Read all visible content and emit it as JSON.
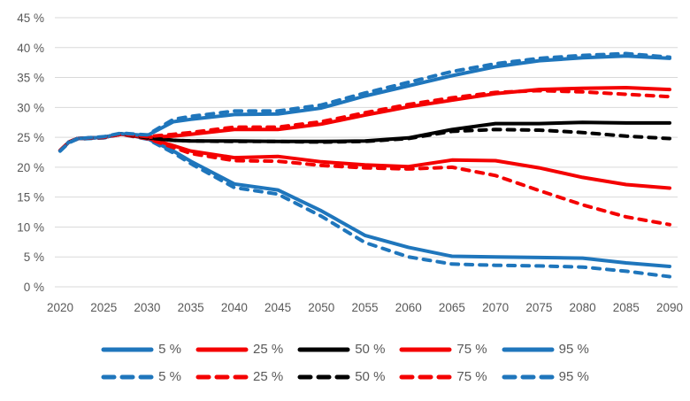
{
  "chart_data": {
    "type": "line",
    "title": "",
    "xlabel": "",
    "ylabel": "",
    "xlim": [
      2020,
      2090
    ],
    "ylim": [
      0,
      45
    ],
    "grid": true,
    "legend_position": "bottom",
    "axis_text_color": "#595959",
    "grid_color": "#d9d9d9",
    "y_ticks": [
      0,
      5,
      10,
      15,
      20,
      25,
      30,
      35,
      40,
      45
    ],
    "y_tick_suffix": " %",
    "x_ticks": [
      2020,
      2025,
      2030,
      2035,
      2040,
      2045,
      2050,
      2055,
      2060,
      2065,
      2070,
      2075,
      2080,
      2085,
      2090
    ],
    "x": [
      2020,
      2021,
      2022,
      2025,
      2027,
      2030,
      2033,
      2035,
      2040,
      2045,
      2050,
      2055,
      2060,
      2065,
      2070,
      2075,
      2080,
      2085,
      2090
    ],
    "series": [
      {
        "name": "5-percentile-solid",
        "label": "5 %",
        "color": "#1f76bc",
        "dash": false,
        "values": [
          22.8,
          24.2,
          24.8,
          25.0,
          25.6,
          24.8,
          22.7,
          21.0,
          17.2,
          16.2,
          12.7,
          8.6,
          6.6,
          5.1,
          5.0,
          4.9,
          4.8,
          4.0,
          3.4
        ]
      },
      {
        "name": "25-percentile-solid",
        "label": "25 %",
        "color": "#f40000",
        "dash": false,
        "values": [
          22.8,
          24.2,
          24.8,
          25.0,
          25.5,
          24.9,
          23.6,
          22.7,
          21.6,
          21.8,
          20.9,
          20.4,
          20.1,
          21.2,
          21.1,
          19.9,
          18.3,
          17.1,
          16.5
        ]
      },
      {
        "name": "50-percentile-solid",
        "label": "50 %",
        "color": "#000000",
        "dash": false,
        "values": [
          22.8,
          24.2,
          24.8,
          25.0,
          25.6,
          24.9,
          24.5,
          24.4,
          24.4,
          24.3,
          24.3,
          24.4,
          24.9,
          26.3,
          27.3,
          27.3,
          27.5,
          27.4,
          27.4
        ]
      },
      {
        "name": "75-percentile-solid",
        "label": "75 %",
        "color": "#f40000",
        "dash": false,
        "values": [
          22.8,
          24.2,
          24.8,
          25.0,
          25.5,
          25.0,
          25.2,
          25.5,
          26.3,
          26.3,
          27.2,
          28.7,
          30.1,
          31.2,
          32.3,
          33.0,
          33.2,
          33.3,
          33.0
        ]
      },
      {
        "name": "95-percentile-solid",
        "label": "95 %",
        "color": "#1f76bc",
        "dash": false,
        "values": [
          22.8,
          24.2,
          24.8,
          25.0,
          25.6,
          25.3,
          27.6,
          28.0,
          28.8,
          28.9,
          29.9,
          31.9,
          33.6,
          35.3,
          36.8,
          37.8,
          38.3,
          38.6,
          38.2
        ]
      },
      {
        "name": "5-percentile-dashed",
        "label": "5 %",
        "color": "#1f76bc",
        "dash": true,
        "values": [
          22.7,
          24.1,
          24.7,
          24.9,
          25.5,
          24.7,
          22.4,
          20.6,
          16.6,
          15.5,
          11.8,
          7.4,
          5.0,
          3.8,
          3.6,
          3.5,
          3.3,
          2.6,
          1.7
        ]
      },
      {
        "name": "25-percentile-dashed",
        "label": "25 %",
        "color": "#f40000",
        "dash": true,
        "values": [
          22.8,
          24.2,
          24.8,
          25.0,
          25.5,
          24.8,
          23.3,
          22.3,
          21.1,
          21.0,
          20.3,
          19.9,
          19.7,
          20.0,
          18.6,
          16.1,
          13.7,
          11.7,
          10.4
        ]
      },
      {
        "name": "50-percentile-dashed",
        "label": "50 %",
        "color": "#000000",
        "dash": true,
        "values": [
          22.8,
          24.2,
          24.8,
          25.0,
          25.6,
          24.9,
          24.5,
          24.4,
          24.3,
          24.3,
          24.2,
          24.3,
          24.8,
          26.0,
          26.3,
          26.2,
          25.8,
          25.2,
          24.8
        ]
      },
      {
        "name": "75-percentile-dashed",
        "label": "75 %",
        "color": "#f40000",
        "dash": true,
        "values": [
          22.8,
          24.2,
          24.8,
          25.0,
          25.6,
          25.1,
          25.5,
          25.8,
          26.7,
          26.7,
          27.6,
          29.1,
          30.5,
          31.6,
          32.5,
          32.8,
          32.6,
          32.2,
          31.8
        ]
      },
      {
        "name": "95-percentile-dashed",
        "label": "95 %",
        "color": "#1f76bc",
        "dash": true,
        "values": [
          22.7,
          24.1,
          24.8,
          25.1,
          25.7,
          25.4,
          28.0,
          28.5,
          29.4,
          29.4,
          30.4,
          32.4,
          34.2,
          36.0,
          37.3,
          38.2,
          38.7,
          39.0,
          38.4
        ]
      }
    ]
  }
}
